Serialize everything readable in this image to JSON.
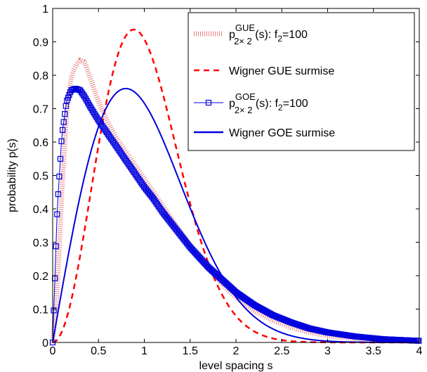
{
  "chart_data": {
    "type": "line",
    "title": "",
    "xlabel": "level spacing s",
    "ylabel": "probability p(s)",
    "xlim": [
      0,
      4
    ],
    "ylim": [
      0,
      1
    ],
    "xticks": [
      0,
      0.5,
      1,
      1.5,
      2,
      2.5,
      3,
      3.5,
      4
    ],
    "xtick_labels": [
      "0",
      "0.5",
      "1",
      "1.5",
      "2",
      "2.5",
      "3",
      "3.5",
      "4"
    ],
    "yticks": [
      0,
      0.1,
      0.2,
      0.3,
      0.4,
      0.5,
      0.6,
      0.7,
      0.8,
      0.9,
      1
    ],
    "ytick_labels": [
      "0",
      "0.1",
      "0.2",
      "0.3",
      "0.4",
      "0.5",
      "0.6",
      "0.7",
      "0.8",
      "0.9",
      "1"
    ],
    "grid": false,
    "legend_position": "top-right",
    "series": [
      {
        "key": "gue-2x2",
        "legend_parts": {
          "p": "p",
          "sup": "GUE",
          "sub": "2× 2",
          "rest": " (s): f",
          "rest_sub": "2",
          "tail": "=100"
        },
        "color": "#e05555",
        "style": "dotted",
        "x": [
          0,
          0.05,
          0.1,
          0.15,
          0.2,
          0.25,
          0.3,
          0.35,
          0.4,
          0.5,
          0.6,
          0.7,
          0.8,
          0.9,
          1.0,
          1.1,
          1.2,
          1.3,
          1.4,
          1.5,
          1.6,
          1.7,
          1.8,
          1.9,
          2.0,
          2.2,
          2.4,
          2.6,
          2.8,
          3.0,
          3.3,
          3.6,
          4.0
        ],
        "y": [
          0,
          0.15,
          0.45,
          0.68,
          0.79,
          0.83,
          0.845,
          0.84,
          0.8,
          0.72,
          0.66,
          0.61,
          0.57,
          0.53,
          0.49,
          0.45,
          0.41,
          0.37,
          0.33,
          0.29,
          0.25,
          0.22,
          0.19,
          0.16,
          0.135,
          0.095,
          0.066,
          0.045,
          0.03,
          0.02,
          0.011,
          0.006,
          0.002
        ]
      },
      {
        "key": "wigner-gue",
        "legend": "Wigner GUE surmise",
        "color": "#ff0000",
        "style": "dashed",
        "formula": "gue"
      },
      {
        "key": "goe-2x2",
        "legend_parts": {
          "p": "p",
          "sup": "GOE",
          "sub": "2× 2",
          "rest": " (s): f",
          "rest_sub": "2",
          "tail": "=100"
        },
        "color": "#0000dd",
        "style": "markers",
        "marker": "square",
        "x": [
          0,
          0.05,
          0.1,
          0.15,
          0.2,
          0.25,
          0.3,
          0.35,
          0.4,
          0.5,
          0.6,
          0.7,
          0.8,
          0.9,
          1.0,
          1.1,
          1.2,
          1.3,
          1.4,
          1.5,
          1.6,
          1.7,
          1.8,
          1.9,
          2.0,
          2.2,
          2.4,
          2.6,
          2.8,
          3.0,
          3.3,
          3.6,
          4.0
        ],
        "y": [
          0,
          0.4,
          0.62,
          0.72,
          0.755,
          0.76,
          0.755,
          0.735,
          0.71,
          0.665,
          0.625,
          0.585,
          0.545,
          0.505,
          0.465,
          0.43,
          0.39,
          0.355,
          0.32,
          0.285,
          0.255,
          0.225,
          0.2,
          0.175,
          0.15,
          0.112,
          0.082,
          0.06,
          0.042,
          0.03,
          0.018,
          0.01,
          0.005
        ]
      },
      {
        "key": "wigner-goe",
        "legend": "Wigner GOE surmise",
        "color": "#0000dd",
        "style": "solid",
        "formula": "goe"
      }
    ]
  }
}
